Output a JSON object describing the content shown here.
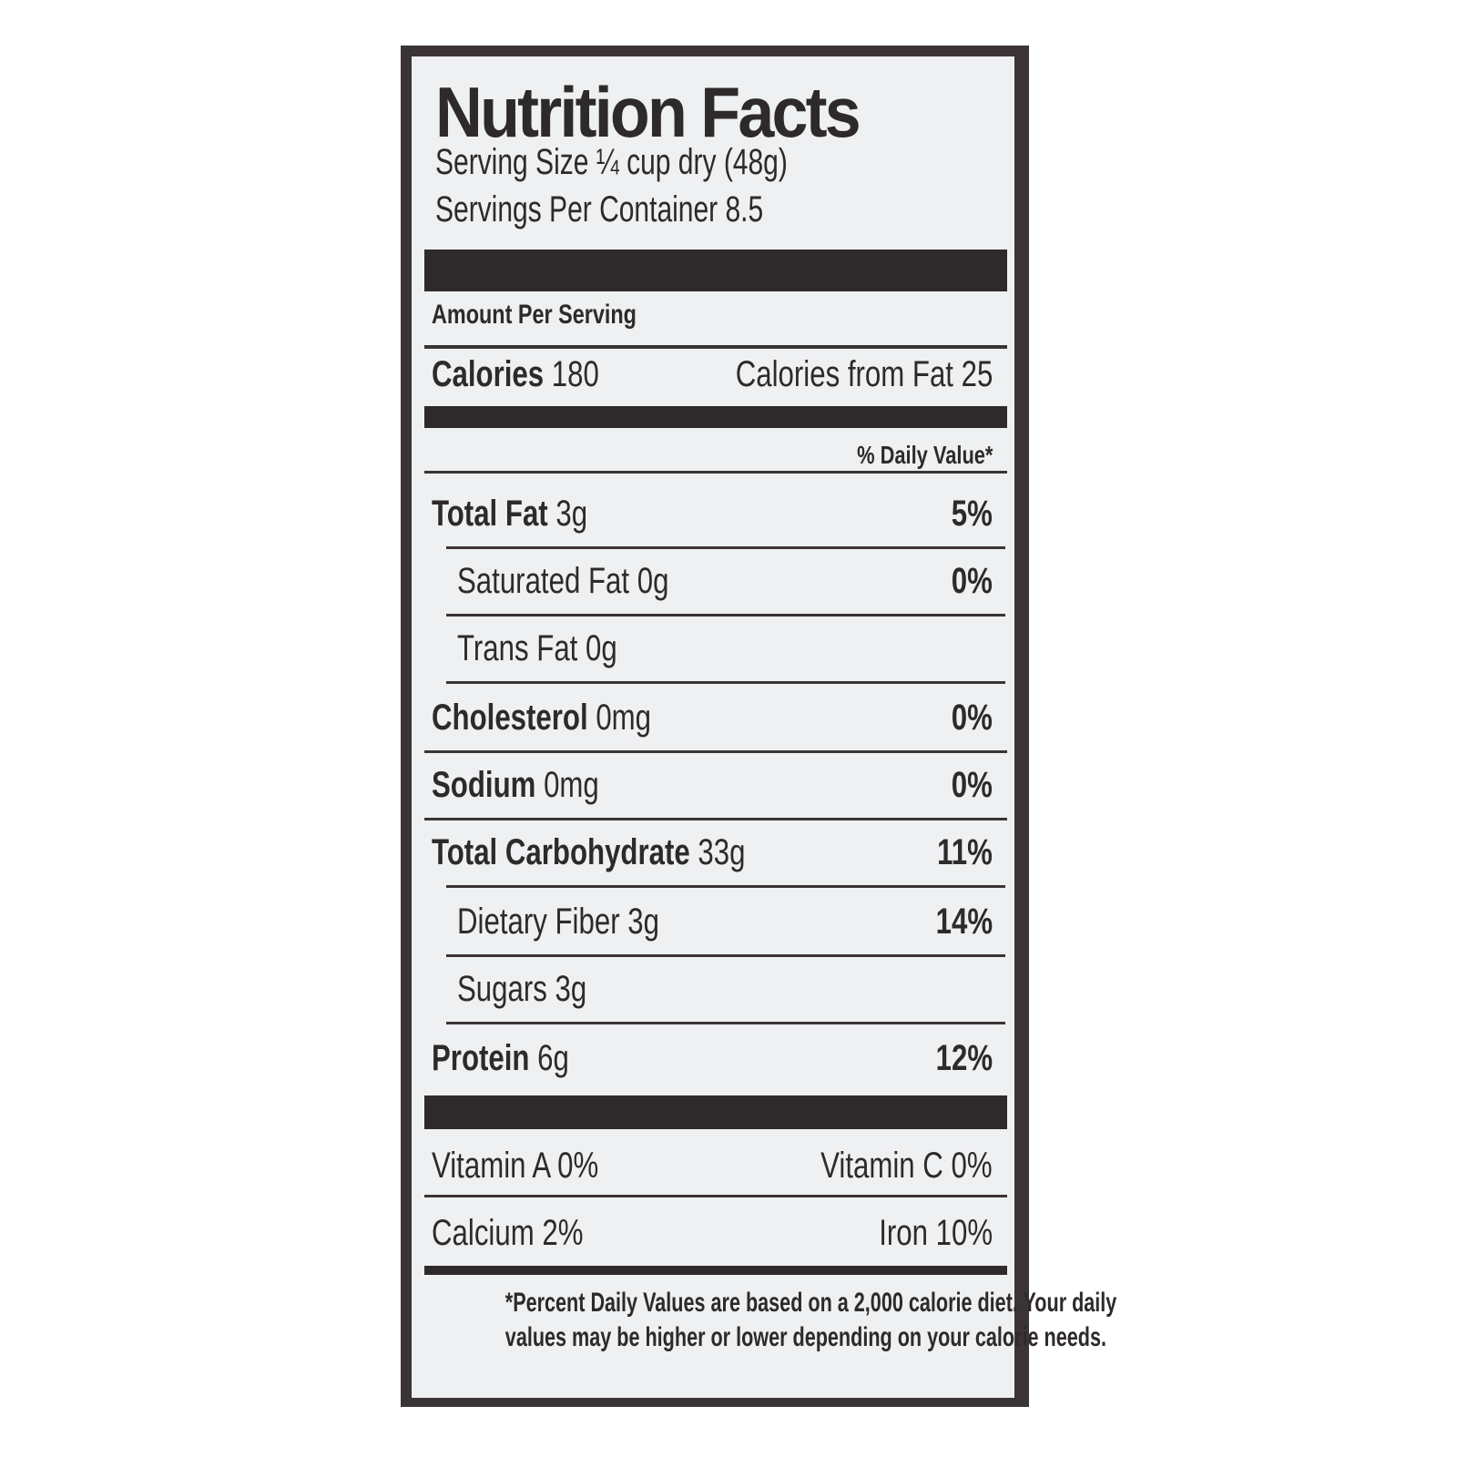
{
  "title": "Nutrition Facts",
  "serving_size": "Serving Size ¼ cup dry (48g)",
  "servings_per_container": "Servings Per Container  8.5",
  "amount_per_serving": "Amount Per Serving",
  "calories": {
    "label": "Calories",
    "value": "180",
    "from_fat_label": "Calories from Fat",
    "from_fat_value": "25"
  },
  "daily_value_header": "% Daily Value*",
  "nutrients": [
    {
      "label": "Total Fat",
      "amount": "3g",
      "dv": "5%",
      "bold": true,
      "indent": false
    },
    {
      "label": "Saturated Fat",
      "amount": "0g",
      "dv": "0%",
      "bold": false,
      "indent": true
    },
    {
      "label": "Trans Fat",
      "amount": "0g",
      "dv": "",
      "bold": false,
      "indent": true
    },
    {
      "label": "Cholesterol",
      "amount": "0mg",
      "dv": "0%",
      "bold": true,
      "indent": false
    },
    {
      "label": "Sodium",
      "amount": "0mg",
      "dv": "0%",
      "bold": true,
      "indent": false
    },
    {
      "label": "Total Carbohydrate",
      "amount": "33g",
      "dv": "11%",
      "bold": true,
      "indent": false
    },
    {
      "label": "Dietary Fiber",
      "amount": "3g",
      "dv": "14%",
      "bold": false,
      "indent": true
    },
    {
      "label": "Sugars",
      "amount": "3g",
      "dv": "",
      "bold": false,
      "indent": true
    },
    {
      "label": "Protein",
      "amount": "6g",
      "dv": "12%",
      "bold": true,
      "indent": false
    }
  ],
  "vitamins": [
    {
      "left": "Vitamin A  0%",
      "right": "Vitamin C  0%"
    },
    {
      "left": "Calcium  2%",
      "right": "Iron  10%"
    }
  ],
  "footnote": [
    "*Percent Daily Values are based on a 2,000 calorie diet. Your daily",
    "values may be higher or lower depending on your calorie needs."
  ]
}
